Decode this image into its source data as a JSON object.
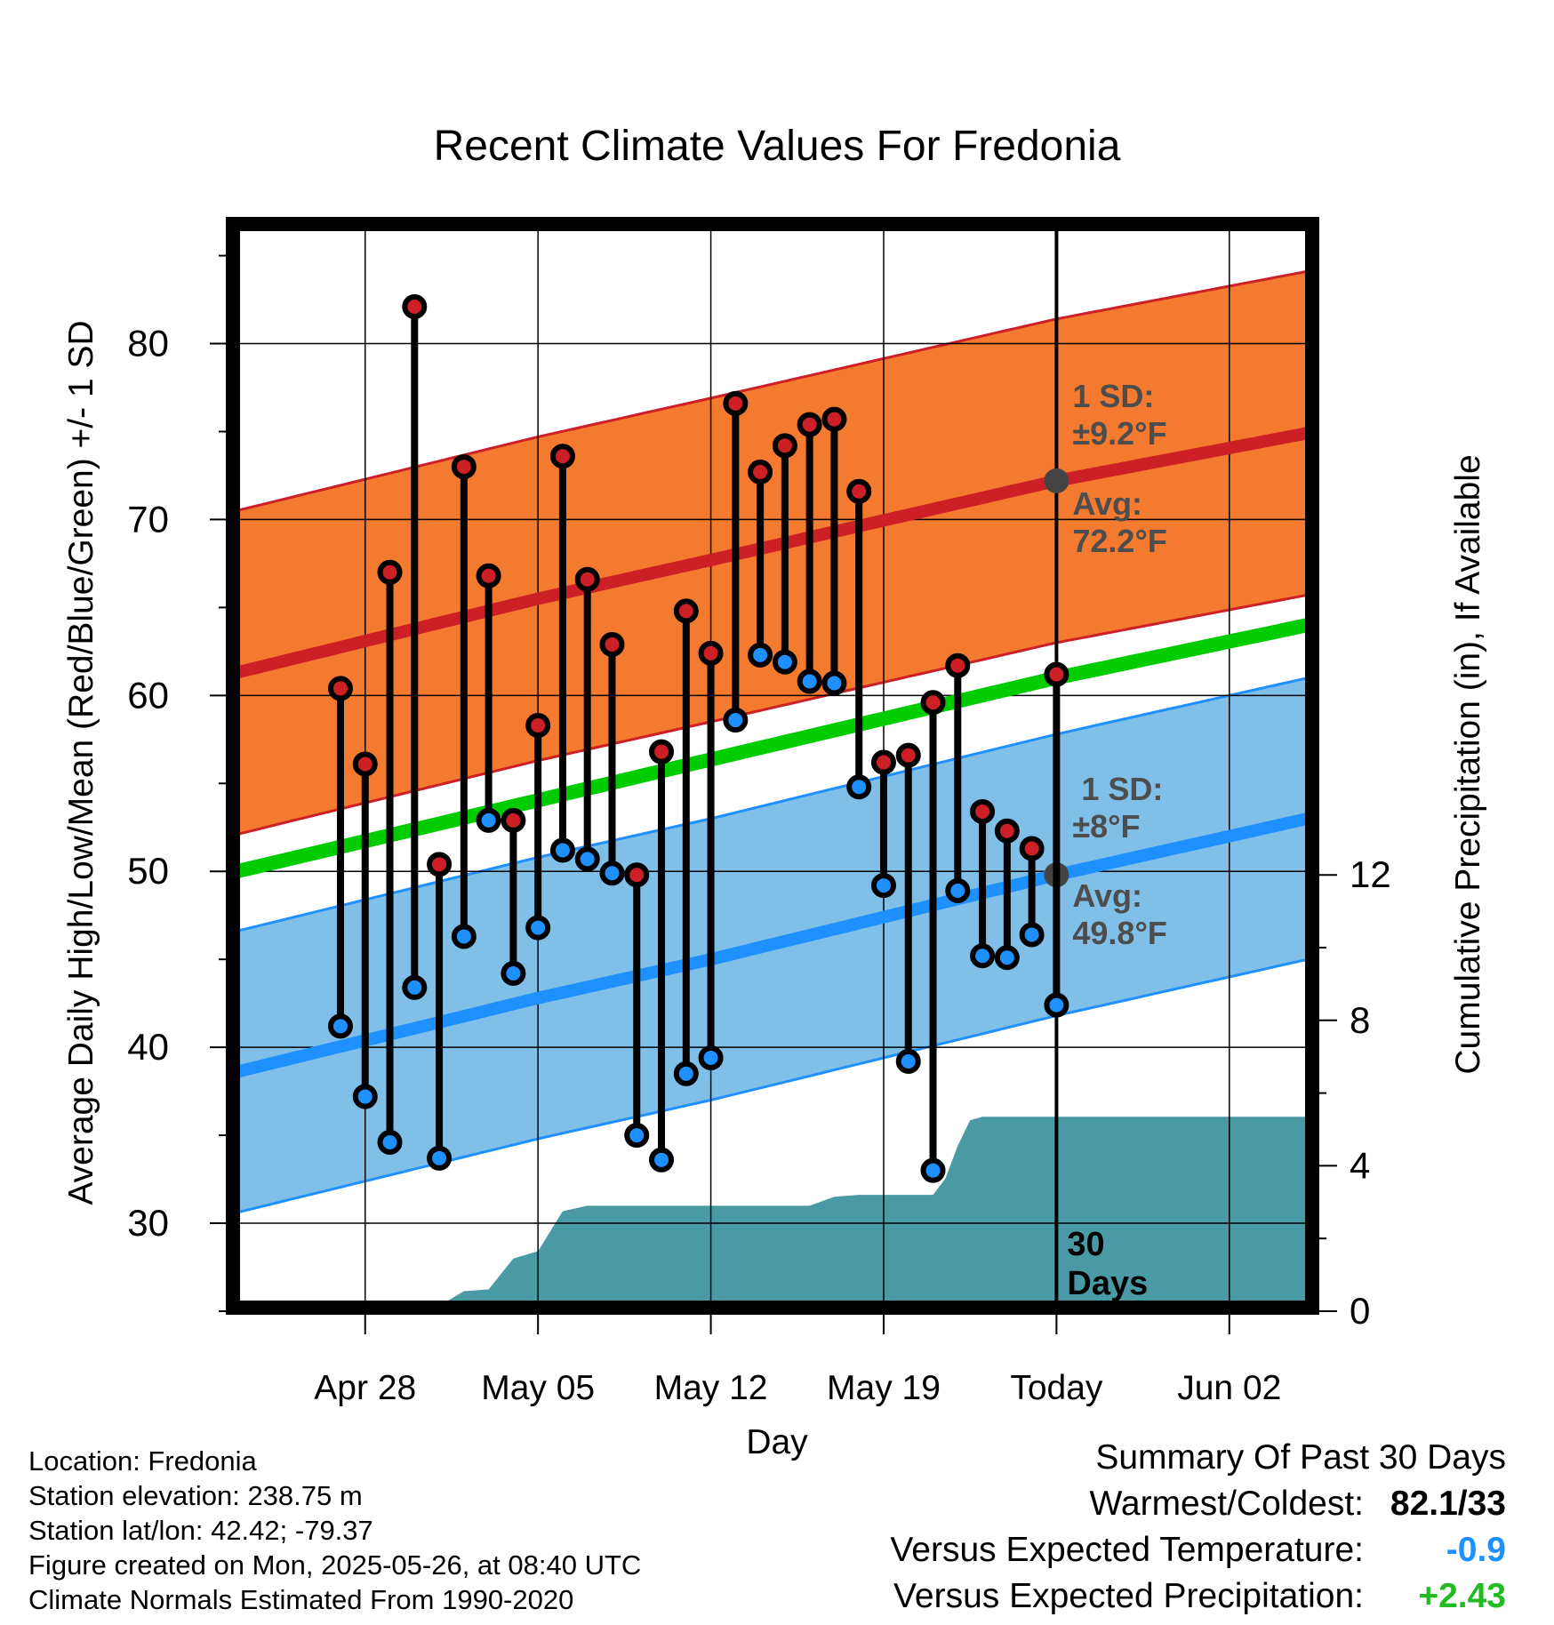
{
  "chart_data": {
    "type": "line",
    "title": "Recent Climate Values For Fredonia",
    "xlabel": "Day",
    "ylabel": "Average Daily High/Low/Mean (Red/Blue/Green) +/- 1 SD",
    "y2label": "Cumulative Precipitation (in), If Available",
    "ylim": [
      25,
      87
    ],
    "y2lim": [
      0,
      30
    ],
    "x_day_range": [
      -33.5,
      10.5
    ],
    "x_ticks": [
      {
        "day": -28,
        "label": "Apr 28"
      },
      {
        "day": -21,
        "label": "May 05"
      },
      {
        "day": -14,
        "label": "May 12"
      },
      {
        "day": -7,
        "label": "May 19"
      },
      {
        "day": 0,
        "label": "Today"
      },
      {
        "day": 7,
        "label": "Jun 02"
      }
    ],
    "y_ticks": [
      30,
      40,
      50,
      60,
      70,
      80
    ],
    "y2_ticks": [
      0,
      4,
      8,
      12
    ],
    "grid": true,
    "today_label": "30 Days",
    "normals": {
      "high_avg": [
        [
          -33.5,
          61.2
        ],
        [
          -21,
          65.5
        ],
        [
          -14,
          67.7
        ],
        [
          0,
          72.2
        ],
        [
          10.5,
          75.0
        ]
      ],
      "high_sd": 9.2,
      "low_avg": [
        [
          -33.5,
          38.5
        ],
        [
          -21,
          42.8
        ],
        [
          -14,
          45.0
        ],
        [
          0,
          49.8
        ],
        [
          10.5,
          53.1
        ]
      ],
      "low_sd": 8.0,
      "mean_avg": [
        [
          -33.5,
          49.9
        ],
        [
          0,
          61.0
        ],
        [
          10.5,
          64.1
        ]
      ]
    },
    "annotations": {
      "high_sd_label": "1 SD:",
      "high_sd_value": "±9.2°F",
      "high_avg_label": "Avg:",
      "high_avg_value": "72.2°F",
      "low_sd_label": "1 SD:",
      "low_sd_value": "±8°F",
      "low_avg_label": "Avg:",
      "low_avg_value": "49.8°F"
    },
    "daily": [
      {
        "day": -29,
        "high": 60.4,
        "low": 41.2
      },
      {
        "day": -28,
        "high": 56.1,
        "low": 37.2
      },
      {
        "day": -27,
        "high": 67.0,
        "low": 34.6
      },
      {
        "day": -26,
        "high": 82.1,
        "low": 43.4
      },
      {
        "day": -25,
        "high": 50.4,
        "low": 33.7
      },
      {
        "day": -24,
        "high": 73.0,
        "low": 46.3
      },
      {
        "day": -23,
        "high": 66.8,
        "low": 52.9
      },
      {
        "day": -22,
        "high": 52.9,
        "low": 44.2
      },
      {
        "day": -21,
        "high": 58.3,
        "low": 46.8
      },
      {
        "day": -20,
        "high": 73.6,
        "low": 51.2
      },
      {
        "day": -19,
        "high": 66.6,
        "low": 50.7
      },
      {
        "day": -18,
        "high": 62.9,
        "low": 49.9
      },
      {
        "day": -17,
        "high": 49.8,
        "low": 35.0
      },
      {
        "day": -16,
        "high": 56.8,
        "low": 33.6
      },
      {
        "day": -15,
        "high": 64.8,
        "low": 38.5
      },
      {
        "day": -14,
        "high": 62.4,
        "low": 39.4
      },
      {
        "day": -13,
        "high": 76.6,
        "low": 58.6
      },
      {
        "day": -12,
        "high": 72.7,
        "low": 62.3
      },
      {
        "day": -11,
        "high": 74.2,
        "low": 61.9
      },
      {
        "day": -10,
        "high": 75.4,
        "low": 60.8
      },
      {
        "day": -9,
        "high": 75.7,
        "low": 60.7
      },
      {
        "day": -8,
        "high": 71.6,
        "low": 54.8
      },
      {
        "day": -7,
        "high": 56.2,
        "low": 49.2
      },
      {
        "day": -6,
        "high": 56.6,
        "low": 39.2
      },
      {
        "day": -5,
        "high": 59.6,
        "low": 33.0
      },
      {
        "day": -4,
        "high": 61.7,
        "low": 48.9
      },
      {
        "day": -3,
        "high": 53.4,
        "low": 45.2
      },
      {
        "day": -2,
        "high": 52.3,
        "low": 45.1
      },
      {
        "day": -1,
        "high": 51.3,
        "low": 46.4
      },
      {
        "day": 0,
        "high": 61.2,
        "low": 42.4
      }
    ],
    "precip_cumulative": [
      [
        -30.5,
        0.0
      ],
      [
        -29,
        0.05
      ],
      [
        -27,
        0.05
      ],
      [
        -26,
        0.15
      ],
      [
        -25,
        0.15
      ],
      [
        -24,
        0.55
      ],
      [
        -23,
        0.6
      ],
      [
        -22,
        1.45
      ],
      [
        -21,
        1.65
      ],
      [
        -20,
        2.75
      ],
      [
        -19,
        2.9
      ],
      [
        -14,
        2.9
      ],
      [
        -10,
        2.9
      ],
      [
        -9,
        3.15
      ],
      [
        -8,
        3.2
      ],
      [
        -5,
        3.2
      ],
      [
        -4.5,
        3.65
      ],
      [
        -4,
        4.55
      ],
      [
        -3.5,
        5.25
      ],
      [
        -3,
        5.35
      ],
      [
        1,
        5.35
      ],
      [
        10.5,
        5.35
      ]
    ],
    "colors": {
      "high": "#cc1f26",
      "low": "#1e90ff",
      "mean": "#00cc00",
      "high_band": "#f47a30",
      "low_band": "#80c0e8",
      "precip": "#4a9aa5",
      "annotation": "#4d4d4d"
    }
  },
  "footer": {
    "location": "Location: Fredonia",
    "elevation": "Station elevation: 238.75 m",
    "latlon": "Station lat/lon: 42.42; -79.37",
    "created": "Figure created on Mon, 2025-05-26, at 08:40 UTC",
    "normals": "Climate Normals Estimated From 1990-2020"
  },
  "summary": {
    "title": "Summary Of Past 30 Days",
    "warmest_label": "Warmest/Coldest:",
    "warmest_value": "82.1/33",
    "temp_label": "Versus Expected Temperature:",
    "temp_value": "-0.9",
    "temp_color": "#1e90ff",
    "precip_label": "Versus Expected Precipitation:",
    "precip_value": "+2.43",
    "precip_color": "#22bb22"
  }
}
